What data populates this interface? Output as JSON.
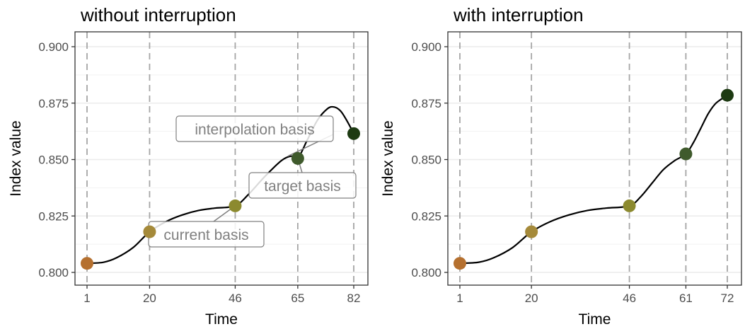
{
  "chart_data": [
    {
      "type": "line",
      "title": "without interruption",
      "xlabel": "Time",
      "ylabel": "Index value",
      "xlim": [
        1,
        82
      ],
      "ylim": [
        0.8,
        0.9
      ],
      "x_ticks": [
        1,
        20,
        46,
        65,
        82
      ],
      "y_ticks": [
        "0.800",
        "0.825",
        "0.850",
        "0.875",
        "0.900"
      ],
      "grid": true,
      "vlines_dashed": [
        1,
        20,
        46,
        65,
        82
      ],
      "points": [
        {
          "x": 1,
          "y": 0.804,
          "color": "#b5702f"
        },
        {
          "x": 20,
          "y": 0.818,
          "color": "#a58a3a"
        },
        {
          "x": 46,
          "y": 0.8295,
          "color": "#8c8a2f"
        },
        {
          "x": 65,
          "y": 0.8505,
          "color": "#3f5a2c"
        },
        {
          "x": 82,
          "y": 0.8615,
          "color": "#1d3a12"
        }
      ],
      "curve": [
        {
          "x": 1,
          "y": 0.804
        },
        {
          "x": 6,
          "y": 0.8045
        },
        {
          "x": 10,
          "y": 0.8065
        },
        {
          "x": 15,
          "y": 0.811
        },
        {
          "x": 20,
          "y": 0.818
        },
        {
          "x": 25,
          "y": 0.8225
        },
        {
          "x": 30,
          "y": 0.8255
        },
        {
          "x": 35,
          "y": 0.8275
        },
        {
          "x": 40,
          "y": 0.8285
        },
        {
          "x": 46,
          "y": 0.8295
        },
        {
          "x": 50,
          "y": 0.8345
        },
        {
          "x": 55,
          "y": 0.8425
        },
        {
          "x": 60,
          "y": 0.8495
        },
        {
          "x": 63,
          "y": 0.8515
        },
        {
          "x": 65,
          "y": 0.8505
        },
        {
          "x": 68,
          "y": 0.859
        },
        {
          "x": 71,
          "y": 0.8675
        },
        {
          "x": 74,
          "y": 0.8725
        },
        {
          "x": 76,
          "y": 0.8733
        },
        {
          "x": 78,
          "y": 0.8715
        },
        {
          "x": 80,
          "y": 0.867
        },
        {
          "x": 82,
          "y": 0.8615
        }
      ],
      "annotations": [
        {
          "text": "interpolation basis",
          "anchor_x": 62,
          "anchor_y": 0.8515
        },
        {
          "text": "target basis",
          "anchor_x": 65,
          "anchor_y": 0.8505
        },
        {
          "text": "current basis",
          "anchor_x": 46,
          "anchor_y": 0.8295
        }
      ]
    },
    {
      "type": "line",
      "title": "with interruption",
      "xlabel": "Time",
      "ylabel": "Index value",
      "xlim": [
        1,
        72
      ],
      "ylim": [
        0.8,
        0.9
      ],
      "x_ticks": [
        1,
        20,
        46,
        61,
        72
      ],
      "y_ticks": [
        "0.800",
        "0.825",
        "0.850",
        "0.875",
        "0.900"
      ],
      "grid": true,
      "vlines_dashed": [
        1,
        20,
        46,
        61,
        72
      ],
      "points": [
        {
          "x": 1,
          "y": 0.804,
          "color": "#b5702f"
        },
        {
          "x": 20,
          "y": 0.818,
          "color": "#a58a3a"
        },
        {
          "x": 46,
          "y": 0.8295,
          "color": "#8c8a2f"
        },
        {
          "x": 61,
          "y": 0.8525,
          "color": "#3f5a2c"
        },
        {
          "x": 72,
          "y": 0.8785,
          "color": "#1d3a12"
        }
      ],
      "curve": [
        {
          "x": 1,
          "y": 0.804
        },
        {
          "x": 6,
          "y": 0.8045
        },
        {
          "x": 10,
          "y": 0.8065
        },
        {
          "x": 15,
          "y": 0.811
        },
        {
          "x": 20,
          "y": 0.818
        },
        {
          "x": 25,
          "y": 0.8225
        },
        {
          "x": 30,
          "y": 0.8255
        },
        {
          "x": 35,
          "y": 0.8275
        },
        {
          "x": 40,
          "y": 0.8285
        },
        {
          "x": 46,
          "y": 0.8295
        },
        {
          "x": 49,
          "y": 0.8335
        },
        {
          "x": 52,
          "y": 0.8395
        },
        {
          "x": 55,
          "y": 0.8455
        },
        {
          "x": 58,
          "y": 0.8495
        },
        {
          "x": 61,
          "y": 0.8525
        },
        {
          "x": 63,
          "y": 0.8575
        },
        {
          "x": 65,
          "y": 0.864
        },
        {
          "x": 67,
          "y": 0.8705
        },
        {
          "x": 69,
          "y": 0.875
        },
        {
          "x": 72,
          "y": 0.8785
        }
      ]
    }
  ]
}
